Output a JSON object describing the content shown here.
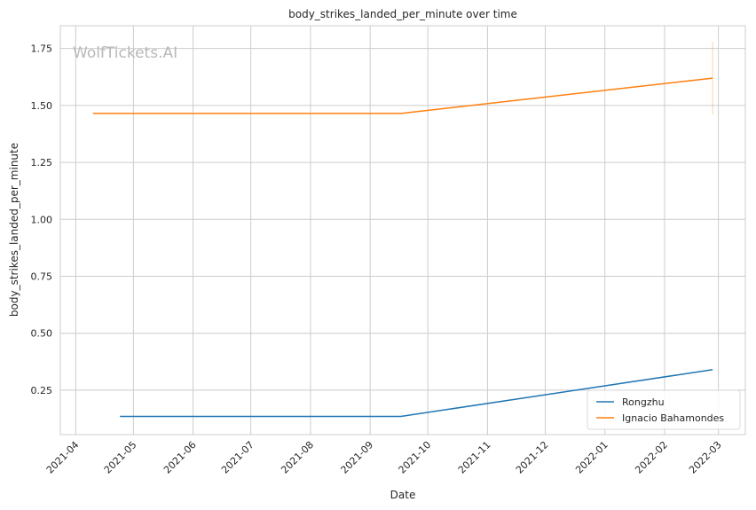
{
  "watermark": "WolfTickets.AI",
  "chart_data": {
    "type": "line",
    "title": "body_strikes_landed_per_minute over time",
    "xlabel": "Date",
    "ylabel": "body_strikes_landed_per_minute",
    "x_ticks": [
      "2021-04",
      "2021-05",
      "2021-06",
      "2021-07",
      "2021-08",
      "2021-09",
      "2021-10",
      "2021-11",
      "2021-12",
      "2022-01",
      "2022-02",
      "2022-03"
    ],
    "y_ticks": [
      "0.25",
      "0.50",
      "0.75",
      "1.00",
      "1.25",
      "1.50",
      "1.75"
    ],
    "xlim": [
      "2021-03-24",
      "2022-03-15"
    ],
    "ylim": [
      0.055,
      1.85
    ],
    "grid": true,
    "legend_position": "bottom-right",
    "series": [
      {
        "name": "Rongzhu",
        "color": "#1f77b4",
        "points": [
          {
            "x": "2021-04-24",
            "y": 0.135
          },
          {
            "x": "2021-09-17",
            "y": 0.135
          },
          {
            "x": "2022-02-26",
            "y": 0.34
          }
        ]
      },
      {
        "name": "Ignacio Bahamondes",
        "color": "#ff7f0e",
        "points": [
          {
            "x": "2021-04-10",
            "y": 1.465
          },
          {
            "x": "2021-09-17",
            "y": 1.465
          },
          {
            "x": "2022-02-26",
            "y": 1.62
          }
        ],
        "error_bar": {
          "x": "2022-02-26",
          "low": 1.46,
          "high": 1.78
        }
      }
    ]
  }
}
